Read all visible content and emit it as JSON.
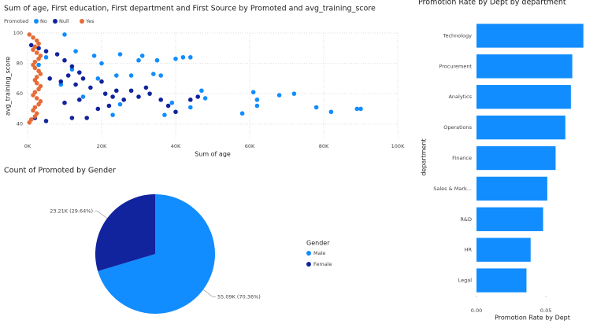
{
  "chart_data": [
    {
      "type": "scatter",
      "title": "Sum of age, First education, First department and First Source by Promoted and avg_training_score",
      "legend_title": "Promoted",
      "x_label": "Sum of age",
      "y_label": "avg_training_score",
      "xlim": [
        0,
        100000
      ],
      "xticks": [
        {
          "value": 0,
          "label": "0K"
        },
        {
          "value": 20000,
          "label": "20K"
        },
        {
          "value": 40000,
          "label": "40K"
        },
        {
          "value": 60000,
          "label": "60K"
        },
        {
          "value": 80000,
          "label": "80K"
        },
        {
          "value": 100000,
          "label": "100K"
        }
      ],
      "ylim": [
        30,
        100
      ],
      "yticks": [
        40,
        60,
        80,
        100
      ],
      "grid": true,
      "series": [
        {
          "name": "No",
          "color": "#118DFF",
          "x": [
            10000,
            13000,
            18000,
            25000,
            31000,
            35000,
            40000,
            42000,
            44000,
            20000,
            30000,
            24000,
            28000,
            34000,
            36000,
            19000,
            47000,
            48000,
            61000,
            62000,
            68000,
            72000,
            62000,
            78000,
            82000,
            89000,
            90000,
            58000,
            37000,
            23000,
            15000,
            25000,
            39000,
            44000,
            9000,
            5000,
            3000,
            12000
          ],
          "y": [
            99,
            88,
            85,
            86,
            85,
            82,
            83,
            84,
            84,
            80,
            82,
            72,
            72,
            73,
            72,
            70,
            62,
            57,
            61,
            56,
            59,
            60,
            52,
            51,
            48,
            50,
            50,
            47,
            46,
            46,
            58,
            53,
            54,
            51,
            66,
            84,
            79,
            76
          ]
        },
        {
          "name": "Null",
          "color": "#12239E",
          "x": [
            1000,
            3000,
            5000,
            8000,
            10000,
            12000,
            14000,
            6000,
            9000,
            11000,
            13000,
            15000,
            17000,
            20000,
            21000,
            23000,
            26000,
            28000,
            30000,
            32000,
            33000,
            36000,
            38000,
            40000,
            44000,
            46000,
            16000,
            12000,
            5000,
            2000,
            10000,
            14000,
            19000,
            22000,
            24000
          ],
          "y": [
            92,
            90,
            88,
            86,
            82,
            78,
            74,
            70,
            68,
            72,
            66,
            70,
            64,
            68,
            60,
            58,
            56,
            62,
            58,
            64,
            60,
            56,
            52,
            48,
            56,
            58,
            44,
            44,
            42,
            44,
            54,
            56,
            50,
            52,
            62
          ]
        },
        {
          "name": "Yes",
          "color": "#E66C37",
          "x": [
            500,
            1500,
            2500,
            3000,
            2000,
            1500,
            2500,
            3500,
            3000,
            2000,
            1500,
            2000,
            3000,
            3500,
            2500,
            2000,
            2500,
            3500,
            3000,
            2000,
            1500,
            2500,
            3500,
            3000,
            2000,
            1500,
            2500,
            2000,
            1000,
            500
          ],
          "y": [
            99,
            97,
            95,
            93,
            91,
            89,
            87,
            85,
            83,
            81,
            79,
            77,
            75,
            73,
            71,
            69,
            67,
            65,
            63,
            61,
            59,
            57,
            55,
            53,
            51,
            49,
            47,
            45,
            43,
            41
          ]
        }
      ]
    },
    {
      "type": "pie",
      "title": "Count of Promoted by Gender",
      "legend_title": "Gender",
      "categories": [
        "Male",
        "Female"
      ],
      "values": [
        55090,
        23210
      ],
      "value_labels": [
        "55.09K (70.36%)",
        "23.21K (29.64%)"
      ],
      "colors": [
        "#118DFF",
        "#12239E"
      ]
    },
    {
      "type": "bar",
      "orientation": "horizontal",
      "title": "Promotion Rate by Dept by department",
      "x_label": "Promotion Rate by Dept",
      "y_label": "department",
      "categories": [
        "Technology",
        "Procurement",
        "Analytics",
        "Operations",
        "Finance",
        "Sales & Mark...",
        "R&D",
        "HR",
        "Legal"
      ],
      "values": [
        0.077,
        0.069,
        0.068,
        0.064,
        0.057,
        0.051,
        0.048,
        0.039,
        0.036
      ],
      "color": "#118DFF",
      "xlim": [
        0,
        0.08
      ],
      "xticks": [
        {
          "value": 0,
          "label": "0.00"
        },
        {
          "value": 0.05,
          "label": "0.05"
        }
      ]
    }
  ]
}
